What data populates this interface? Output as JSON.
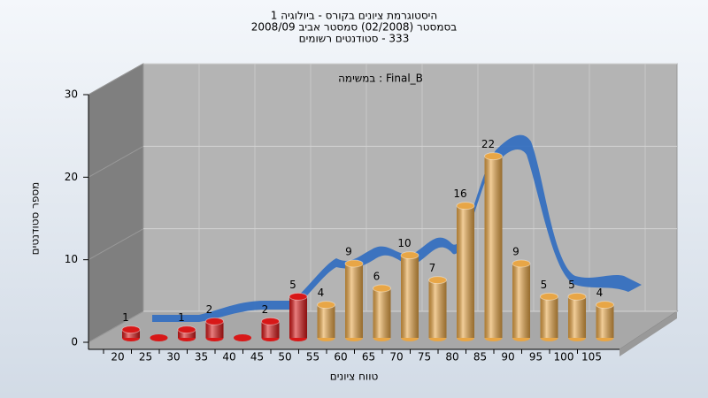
{
  "chart_data": {
    "type": "bar",
    "title": [
      "היסטוגרמת ציונים בקורס - ביולוגיה 1",
      "בסמסטר (02/2008) סמסטר אביב 2008/09",
      "333 - סטודנטים רשומים"
    ],
    "annotation": "Final_B : במשימה",
    "y_label": "מספר סטודנטים",
    "x_label": "טווח ציונים",
    "categories": [
      "20",
      "25",
      "30",
      "35",
      "40",
      "45",
      "50",
      "55",
      "60",
      "65",
      "70",
      "75",
      "80",
      "85",
      "90",
      "95",
      "100",
      "105"
    ],
    "values": [
      1,
      0,
      1,
      2,
      0,
      2,
      5,
      4,
      9,
      6,
      10,
      7,
      16,
      22,
      9,
      5,
      5,
      4
    ],
    "colors": [
      "#d81818",
      "#d81818",
      "#d81818",
      "#d81818",
      "#d81818",
      "#d81818",
      "#d81818",
      "#e8a646",
      "#e8a646",
      "#e8a646",
      "#e8a646",
      "#e8a646",
      "#e8a646",
      "#e8a646",
      "#e8a646",
      "#e8a646",
      "#e8a646",
      "#e8a646"
    ],
    "ylim": [
      0,
      30
    ],
    "yticks": [
      0,
      10,
      20,
      30
    ],
    "grid": true
  }
}
